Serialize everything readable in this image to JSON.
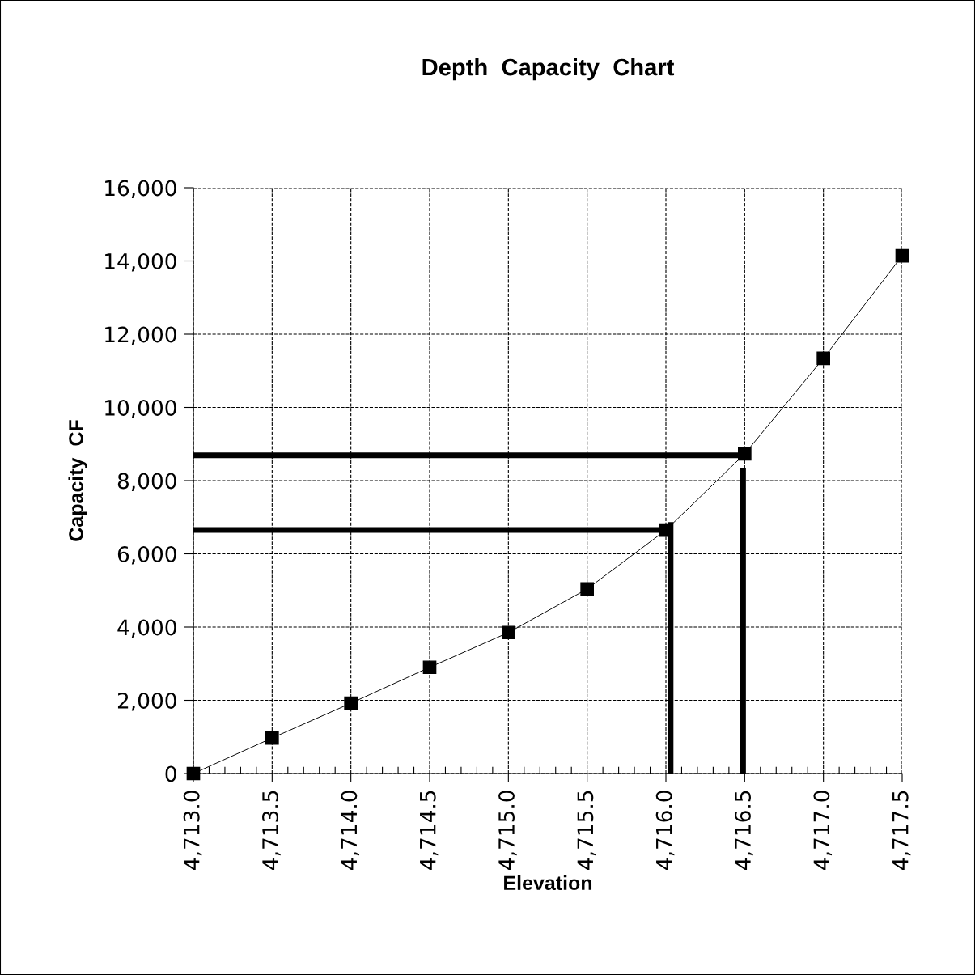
{
  "chart_data": {
    "type": "line",
    "title": "Depth  Capacity  Chart",
    "xlabel": "Elevation",
    "ylabel": "Capacity  CF",
    "xlim": [
      4713.0,
      4717.5
    ],
    "xticks": [
      {
        "value": 4713.0,
        "label": "4,713.0"
      },
      {
        "value": 4713.5,
        "label": "4,713.5"
      },
      {
        "value": 4714.0,
        "label": "4,714.0"
      },
      {
        "value": 4714.5,
        "label": "4,714.5"
      },
      {
        "value": 4715.0,
        "label": "4,715.0"
      },
      {
        "value": 4715.5,
        "label": "4,715.5"
      },
      {
        "value": 4716.0,
        "label": "4,716.0"
      },
      {
        "value": 4716.5,
        "label": "4,716.5"
      },
      {
        "value": 4717.0,
        "label": "4,717.0"
      },
      {
        "value": 4717.5,
        "label": "4,717.5"
      }
    ],
    "ylim": [
      0,
      16000
    ],
    "yticks": [
      0,
      {
        "value": 2000,
        "label": "2,000"
      },
      {
        "value": 4000,
        "label": "4,000"
      },
      {
        "value": 6000,
        "label": "6,000"
      },
      {
        "value": 8000,
        "label": "8,000"
      },
      {
        "value": 10000,
        "label": "10,000"
      },
      {
        "value": 12000,
        "label": "12,000"
      },
      {
        "value": 14000,
        "label": "14,000"
      },
      {
        "value": 16000,
        "label": "16,000"
      }
    ],
    "grid": true,
    "x": [
      4713.0,
      4713.5,
      4714.0,
      4714.5,
      4715.0,
      4715.5,
      4716.0,
      4716.5,
      4717.0,
      4717.5
    ],
    "series": [
      {
        "color": "#000000",
        "marker": "square",
        "values": [
          0,
          970,
          1920,
          2900,
          3850,
          5040,
          6650,
          8730,
          11340,
          14140
        ]
      },
      {
        "color": "#000000",
        "marker": "none",
        "x": [
          4713.0,
          4716.5
        ],
        "values": [
          8690,
          8690
        ]
      },
      {
        "color": "#000000",
        "marker": "none",
        "x": [
          4713.0,
          4716.03
        ],
        "values": [
          6650,
          6650
        ]
      },
      {
        "color": "#000000",
        "marker": "none",
        "x": [
          4716.03,
          4716.03
        ],
        "values": [
          0,
          6870
        ]
      },
      {
        "color": "#000000",
        "marker": "none",
        "x": [
          4716.49,
          4716.49
        ],
        "values": [
          0,
          8350
        ]
      }
    ]
  }
}
